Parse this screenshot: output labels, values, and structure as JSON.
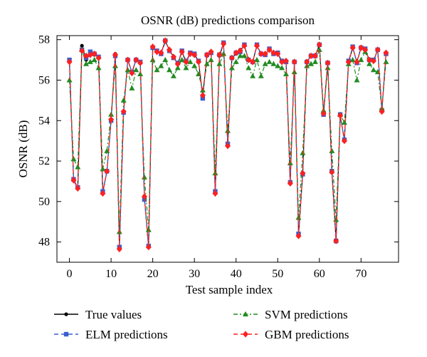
{
  "chart_data": {
    "type": "line",
    "title": "OSNR (dB) predictions comparison",
    "xlabel": "Test sample index",
    "ylabel": "OSNR (dB)",
    "xlim": [
      -3,
      79
    ],
    "ylim": [
      47,
      58.2
    ],
    "xticks": [
      0,
      10,
      20,
      30,
      40,
      50,
      60,
      70
    ],
    "yticks": [
      48,
      50,
      52,
      54,
      56,
      58
    ],
    "grid": false,
    "legend_position": "bottom",
    "x": [
      0,
      1,
      2,
      3,
      4,
      5,
      6,
      7,
      8,
      9,
      10,
      11,
      12,
      13,
      14,
      15,
      16,
      17,
      18,
      19,
      20,
      21,
      22,
      23,
      24,
      25,
      26,
      27,
      28,
      29,
      30,
      31,
      32,
      33,
      34,
      35,
      36,
      37,
      38,
      39,
      40,
      41,
      42,
      43,
      44,
      45,
      46,
      47,
      48,
      49,
      50,
      51,
      52,
      53,
      54,
      55,
      56,
      57,
      58,
      59,
      60,
      61,
      62,
      63,
      64,
      65,
      66,
      67,
      68,
      69,
      70,
      71,
      72,
      73,
      74,
      75,
      76
    ],
    "series": [
      {
        "name": "True values",
        "color": "#000000",
        "style": "solid",
        "marker": "circle",
        "values": [
          56.95,
          51.05,
          50.65,
          57.7,
          57.0,
          57.3,
          57.25,
          57.15,
          50.45,
          51.5,
          54.0,
          57.3,
          47.7,
          54.4,
          57.0,
          56.4,
          57.0,
          56.9,
          50.2,
          47.75,
          57.6,
          57.4,
          57.35,
          57.9,
          57.5,
          57.15,
          56.8,
          57.4,
          56.9,
          57.35,
          57.3,
          56.9,
          55.2,
          57.2,
          57.4,
          50.45,
          57.2,
          57.8,
          52.8,
          57.1,
          57.3,
          57.5,
          57.7,
          57.0,
          56.9,
          57.7,
          57.3,
          57.3,
          57.5,
          57.35,
          57.35,
          56.9,
          56.95,
          50.9,
          56.9,
          48.35,
          51.4,
          56.9,
          57.2,
          57.2,
          57.75,
          54.35,
          56.85,
          51.5,
          48.1,
          54.25,
          53.05,
          56.9,
          57.6,
          56.9,
          57.6,
          57.5,
          57.0,
          56.95,
          57.5,
          54.5,
          57.35
        ]
      },
      {
        "name": "ELM predictions",
        "color": "#3a5fcd",
        "style": "dashed",
        "marker": "square",
        "values": [
          57.0,
          51.1,
          50.7,
          57.5,
          57.1,
          57.4,
          57.3,
          57.15,
          50.5,
          51.5,
          54.0,
          57.2,
          47.75,
          54.4,
          57.0,
          56.4,
          57.0,
          56.9,
          50.1,
          47.8,
          57.6,
          57.45,
          57.3,
          57.95,
          57.45,
          57.1,
          56.85,
          57.45,
          56.95,
          57.35,
          57.3,
          56.95,
          55.1,
          57.25,
          57.35,
          50.5,
          57.25,
          57.85,
          52.85,
          57.1,
          57.35,
          57.4,
          57.75,
          57.0,
          56.9,
          57.75,
          57.3,
          57.25,
          57.55,
          57.3,
          57.35,
          56.95,
          56.9,
          50.95,
          56.9,
          48.4,
          51.35,
          56.9,
          57.2,
          57.2,
          57.75,
          54.3,
          56.85,
          51.5,
          48.05,
          54.3,
          53.05,
          56.95,
          57.65,
          56.85,
          57.6,
          57.55,
          57.0,
          57.0,
          57.5,
          54.5,
          57.3
        ]
      },
      {
        "name": "SVM predictions",
        "color": "#228b22",
        "style": "dashdot",
        "marker": "triangle",
        "values": [
          56.0,
          52.1,
          51.7,
          57.5,
          56.8,
          56.9,
          57.0,
          56.6,
          51.6,
          52.5,
          54.3,
          56.7,
          48.5,
          55.0,
          56.5,
          55.6,
          56.5,
          56.3,
          51.2,
          48.6,
          57.0,
          56.5,
          56.7,
          57.0,
          56.5,
          56.2,
          56.6,
          57.0,
          56.6,
          56.9,
          56.7,
          56.3,
          55.5,
          56.8,
          57.0,
          51.4,
          56.8,
          57.3,
          53.5,
          56.6,
          56.9,
          57.2,
          57.2,
          56.6,
          56.2,
          57.0,
          56.2,
          56.8,
          56.9,
          56.8,
          56.7,
          56.6,
          56.3,
          51.9,
          56.4,
          49.2,
          52.4,
          56.7,
          56.8,
          56.9,
          57.5,
          54.5,
          56.6,
          52.5,
          49.1,
          54.3,
          53.9,
          56.8,
          57.0,
          56.0,
          57.0,
          57.4,
          56.8,
          56.5,
          56.4,
          54.6,
          56.9
        ]
      },
      {
        "name": "GBM predictions",
        "color": "#ff2020",
        "style": "dashed",
        "marker": "diamond",
        "values": [
          56.9,
          51.05,
          50.65,
          57.45,
          57.2,
          57.25,
          57.3,
          57.1,
          50.4,
          51.5,
          54.05,
          57.25,
          47.65,
          54.45,
          57.0,
          56.35,
          57.0,
          56.85,
          50.25,
          47.75,
          57.65,
          57.4,
          57.35,
          57.95,
          57.5,
          57.15,
          56.8,
          57.4,
          56.9,
          57.3,
          57.25,
          56.9,
          55.25,
          57.25,
          57.4,
          50.4,
          57.25,
          57.8,
          52.75,
          57.1,
          57.35,
          57.45,
          57.7,
          57.0,
          56.9,
          57.7,
          57.3,
          57.3,
          57.5,
          57.35,
          57.3,
          56.9,
          56.95,
          50.9,
          56.9,
          48.3,
          51.4,
          56.9,
          57.2,
          57.2,
          57.75,
          54.35,
          56.85,
          51.45,
          48.05,
          54.25,
          53.0,
          56.9,
          57.6,
          56.9,
          57.6,
          57.5,
          57.0,
          56.95,
          57.5,
          54.45,
          57.35
        ]
      }
    ]
  }
}
